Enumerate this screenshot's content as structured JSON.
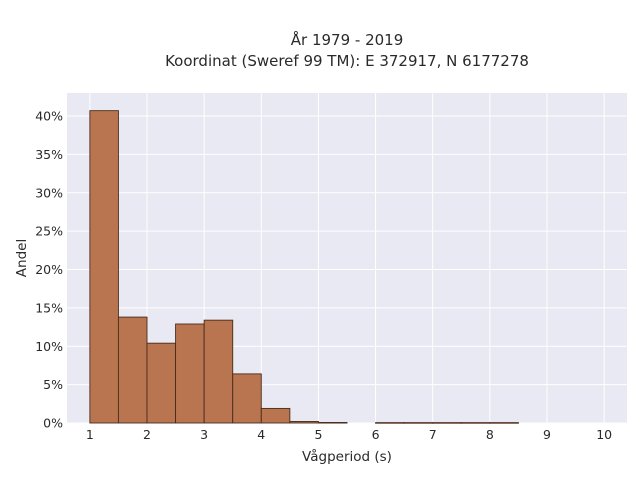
{
  "chart_data": {
    "type": "bar",
    "title": "År 1979 - 2019",
    "subtitle": "Koordinat (Sweref 99 TM): E 372917, N 6177278",
    "xlabel": "Vågperiod (s)",
    "ylabel": "Andel",
    "xlim": [
      0.6,
      10.4
    ],
    "ylim": [
      0,
      0.43
    ],
    "x_ticks": [
      1,
      2,
      3,
      4,
      5,
      6,
      7,
      8,
      9,
      10
    ],
    "x_tick_labels": [
      "1",
      "2",
      "3",
      "4",
      "5",
      "6",
      "7",
      "8",
      "9",
      "10"
    ],
    "y_ticks": [
      0,
      0.05,
      0.1,
      0.15,
      0.2,
      0.25,
      0.3,
      0.35,
      0.4
    ],
    "y_tick_labels": [
      "0%",
      "5%",
      "10%",
      "15%",
      "20%",
      "25%",
      "30%",
      "35%",
      "40%"
    ],
    "grid": true,
    "bin_width": 0.5,
    "bins": [
      {
        "x0": 1.0,
        "x1": 1.5,
        "value": 0.407
      },
      {
        "x0": 1.5,
        "x1": 2.0,
        "value": 0.138
      },
      {
        "x0": 2.0,
        "x1": 2.5,
        "value": 0.104
      },
      {
        "x0": 2.5,
        "x1": 3.0,
        "value": 0.129
      },
      {
        "x0": 3.0,
        "x1": 3.5,
        "value": 0.134
      },
      {
        "x0": 3.5,
        "x1": 4.0,
        "value": 0.064
      },
      {
        "x0": 4.0,
        "x1": 4.5,
        "value": 0.019
      },
      {
        "x0": 4.5,
        "x1": 5.0,
        "value": 0.002
      },
      {
        "x0": 5.0,
        "x1": 5.5,
        "value": 0.0007
      },
      {
        "x0": 6.0,
        "x1": 6.5,
        "value": 0.0005
      },
      {
        "x0": 6.5,
        "x1": 7.0,
        "value": 0.0005
      },
      {
        "x0": 7.0,
        "x1": 7.5,
        "value": 0.0005
      },
      {
        "x0": 7.5,
        "x1": 8.0,
        "value": 0.0005
      },
      {
        "x0": 8.0,
        "x1": 8.5,
        "value": 0.0005
      }
    ],
    "colors": {
      "bar_fill": "#b87550",
      "bar_edge": "#4a2c1a",
      "plot_bg": "#e8e9f2",
      "grid": "#ffffff"
    }
  }
}
